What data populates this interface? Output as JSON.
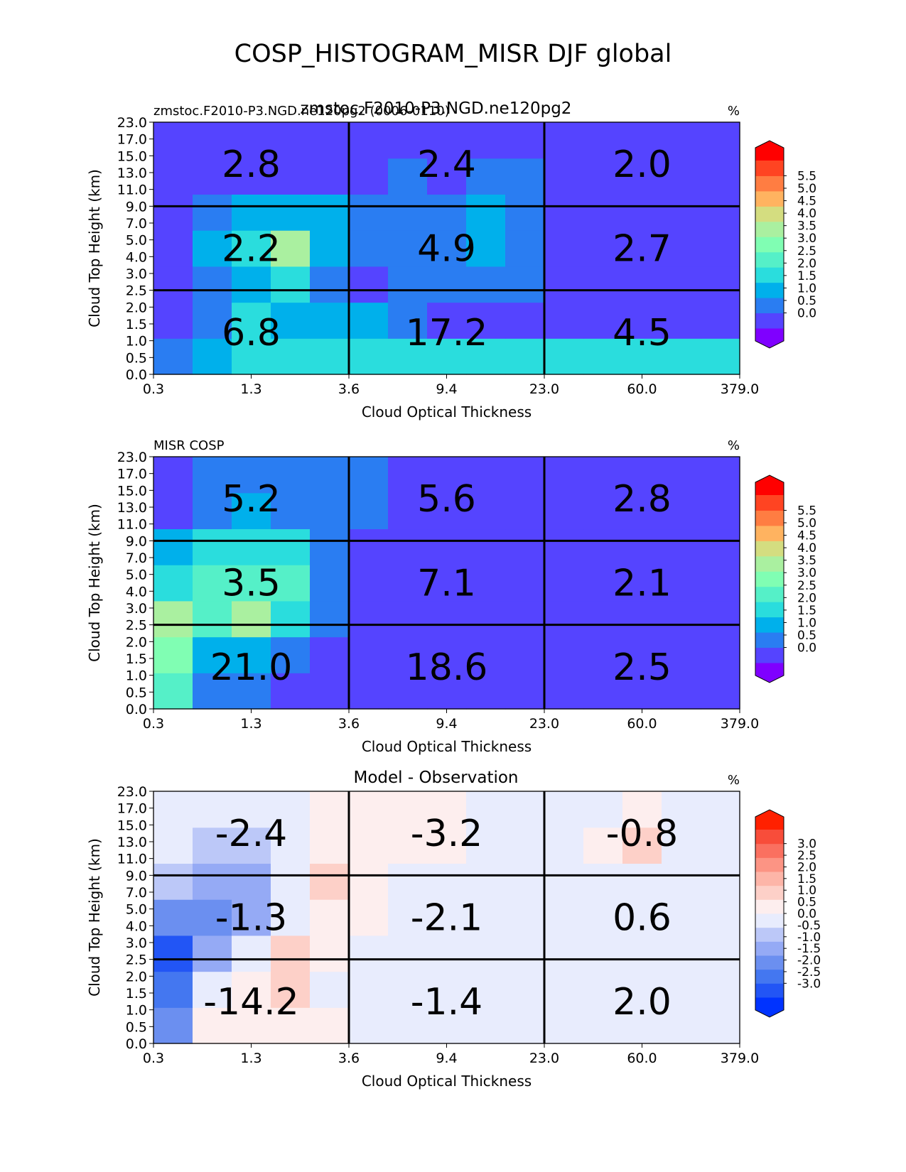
{
  "figure": {
    "title": "COSP_HISTOGRAM_MISR DJF global"
  },
  "axes_common": {
    "xlabel": "Cloud Optical Thickness",
    "ylabel": "Cloud Top Height (km)",
    "xticks": [
      "0.3",
      "1.3",
      "3.6",
      "9.4",
      "23.0",
      "60.0",
      "379.0"
    ],
    "yticks": [
      "0.0",
      "0.5",
      "1.0",
      "1.5",
      "2.0",
      "2.5",
      "3.0",
      "4.0",
      "5.0",
      "7.0",
      "9.0",
      "11.0",
      "13.0",
      "15.0",
      "17.0",
      "23.0"
    ],
    "units": "%"
  },
  "chart_data": [
    {
      "type": "heatmap",
      "panel_id": "model",
      "title_left": "zmstoc.F2010-P3.NGD.ne120pg2 (0006-0110)",
      "title_center": "zmstoc.F2010-P3.NGD.ne120pg2",
      "units": "%",
      "xlabel": "Cloud Optical Thickness",
      "ylabel": "Cloud Top Height (km)",
      "colorbar": {
        "ticks": [
          "5.5",
          "5.0",
          "4.5",
          "4.0",
          "3.5",
          "3.0",
          "2.5",
          "2.0",
          "1.5",
          "1.0",
          "0.5",
          "0.0"
        ],
        "colors": [
          "#7f00ff",
          "#5544ff",
          "#2a7df2",
          "#00b0eb",
          "#2adddd",
          "#55f0c8",
          "#80feb3",
          "#aaf0a0",
          "#d4dd80",
          "#ffb360",
          "#ff7d42",
          "#ff4422",
          "#ff0000"
        ],
        "extend": "both"
      },
      "cell_colors": [
        [
          "#2a7df2",
          "#00b0eb",
          "#2adddd",
          "#2adddd",
          "#2adddd",
          "#2adddd",
          "#2adddd",
          "#2adddd",
          "#2adddd",
          "#2adddd",
          "#2adddd",
          "#2adddd",
          "#2adddd",
          "#2adddd",
          "#2adddd"
        ],
        [
          "#5544ff",
          "#2a7df2",
          "#2adddd",
          "#00b0eb",
          "#00b0eb",
          "#00b0eb",
          "#2a7df2",
          "#5544ff",
          "#5544ff",
          "#5544ff",
          "#5544ff",
          "#5544ff",
          "#5544ff",
          "#5544ff",
          "#5544ff"
        ],
        [
          "#5544ff",
          "#2a7df2",
          "#00b0eb",
          "#2adddd",
          "#2a7df2",
          "#5544ff",
          "#2a7df2",
          "#2a7df2",
          "#2a7df2",
          "#2a7df2",
          "#5544ff",
          "#5544ff",
          "#5544ff",
          "#5544ff",
          "#5544ff"
        ],
        [
          "#5544ff",
          "#00b0eb",
          "#2adddd",
          "#aaf0a0",
          "#00b0eb",
          "#2a7df2",
          "#2a7df2",
          "#2a7df2",
          "#00b0eb",
          "#2a7df2",
          "#5544ff",
          "#5544ff",
          "#5544ff",
          "#5544ff",
          "#5544ff"
        ],
        [
          "#5544ff",
          "#2a7df2",
          "#00b0eb",
          "#00b0eb",
          "#00b0eb",
          "#2a7df2",
          "#2a7df2",
          "#2a7df2",
          "#00b0eb",
          "#2a7df2",
          "#5544ff",
          "#5544ff",
          "#5544ff",
          "#5544ff",
          "#5544ff"
        ],
        [
          "#5544ff",
          "#5544ff",
          "#5544ff",
          "#5544ff",
          "#5544ff",
          "#5544ff",
          "#2a7df2",
          "#5544ff",
          "#2a7df2",
          "#2a7df2",
          "#5544ff",
          "#5544ff",
          "#5544ff",
          "#5544ff",
          "#5544ff"
        ],
        [
          "#5544ff",
          "#5544ff",
          "#5544ff",
          "#5544ff",
          "#5544ff",
          "#5544ff",
          "#5544ff",
          "#5544ff",
          "#5544ff",
          "#5544ff",
          "#5544ff",
          "#5544ff",
          "#5544ff",
          "#5544ff",
          "#5544ff"
        ]
      ],
      "box_values": [
        [
          "6.8",
          "17.2",
          "4.5"
        ],
        [
          "2.2",
          "4.9",
          "2.7"
        ],
        [
          "2.8",
          "2.4",
          "2.0"
        ]
      ]
    },
    {
      "type": "heatmap",
      "panel_id": "obs",
      "title_left": "MISR COSP",
      "title_center": "",
      "units": "%",
      "xlabel": "Cloud Optical Thickness",
      "ylabel": "Cloud Top Height (km)",
      "colorbar": {
        "ticks": [
          "5.5",
          "5.0",
          "4.5",
          "4.0",
          "3.5",
          "3.0",
          "2.5",
          "2.0",
          "1.5",
          "1.0",
          "0.5",
          "0.0"
        ],
        "colors": [
          "#7f00ff",
          "#5544ff",
          "#2a7df2",
          "#00b0eb",
          "#2adddd",
          "#55f0c8",
          "#80feb3",
          "#aaf0a0",
          "#d4dd80",
          "#ffb360",
          "#ff7d42",
          "#ff4422",
          "#ff0000"
        ],
        "extend": "both"
      },
      "cell_colors": [
        [
          "#55f0c8",
          "#2a7df2",
          "#2a7df2",
          "#5544ff",
          "#5544ff",
          "#5544ff",
          "#5544ff",
          "#5544ff",
          "#5544ff",
          "#5544ff",
          "#5544ff",
          "#5544ff",
          "#5544ff",
          "#5544ff",
          "#5544ff"
        ],
        [
          "#80feb3",
          "#00b0eb",
          "#00b0eb",
          "#2a7df2",
          "#5544ff",
          "#5544ff",
          "#5544ff",
          "#5544ff",
          "#5544ff",
          "#5544ff",
          "#5544ff",
          "#5544ff",
          "#5544ff",
          "#5544ff",
          "#5544ff"
        ],
        [
          "#aaf0a0",
          "#55f0c8",
          "#aaf0a0",
          "#2adddd",
          "#2a7df2",
          "#5544ff",
          "#5544ff",
          "#5544ff",
          "#5544ff",
          "#5544ff",
          "#5544ff",
          "#5544ff",
          "#5544ff",
          "#5544ff",
          "#5544ff"
        ],
        [
          "#2adddd",
          "#55f0c8",
          "#55f0c8",
          "#55f0c8",
          "#2a7df2",
          "#5544ff",
          "#5544ff",
          "#5544ff",
          "#5544ff",
          "#5544ff",
          "#5544ff",
          "#5544ff",
          "#5544ff",
          "#5544ff",
          "#5544ff"
        ],
        [
          "#00b0eb",
          "#2adddd",
          "#2adddd",
          "#2adddd",
          "#2a7df2",
          "#5544ff",
          "#5544ff",
          "#5544ff",
          "#5544ff",
          "#5544ff",
          "#5544ff",
          "#5544ff",
          "#5544ff",
          "#5544ff",
          "#5544ff"
        ],
        [
          "#5544ff",
          "#2a7df2",
          "#00b0eb",
          "#2a7df2",
          "#2a7df2",
          "#2a7df2",
          "#5544ff",
          "#5544ff",
          "#5544ff",
          "#5544ff",
          "#5544ff",
          "#5544ff",
          "#5544ff",
          "#5544ff",
          "#5544ff"
        ],
        [
          "#5544ff",
          "#2a7df2",
          "#2a7df2",
          "#2a7df2",
          "#2a7df2",
          "#2a7df2",
          "#5544ff",
          "#5544ff",
          "#5544ff",
          "#5544ff",
          "#5544ff",
          "#5544ff",
          "#5544ff",
          "#5544ff",
          "#5544ff"
        ]
      ],
      "box_values": [
        [
          "21.0",
          "18.6",
          "2.5"
        ],
        [
          "3.5",
          "7.1",
          "2.1"
        ],
        [
          "5.2",
          "5.6",
          "2.8"
        ]
      ]
    },
    {
      "type": "heatmap",
      "panel_id": "diff",
      "title_left": "",
      "title_center": "Model - Observation",
      "units": "%",
      "xlabel": "Cloud Optical Thickness",
      "ylabel": "Cloud Top Height (km)",
      "colorbar": {
        "ticks": [
          "3.0",
          "2.5",
          "2.0",
          "1.5",
          "1.0",
          "0.5",
          "0.0",
          "-0.5",
          "-1.0",
          "-1.5",
          "-2.0",
          "-2.5",
          "-3.0"
        ],
        "colors": [
          "#0033ff",
          "#2255f5",
          "#4477f0",
          "#6b8ff0",
          "#95aaf5",
          "#bcc8f8",
          "#e8ecfd",
          "#fdeeee",
          "#fdd0c8",
          "#fdb5a8",
          "#fc9484",
          "#fa7060",
          "#f84d3a",
          "#ff2000"
        ],
        "extend": "both"
      },
      "cell_colors": [
        [
          "#6b8ff0",
          "#fdeeee",
          "#fdeeee",
          "#fdeeee",
          "#fdeeee",
          "#e8ecfd",
          "#e8ecfd",
          "#e8ecfd",
          "#e8ecfd",
          "#e8ecfd",
          "#e8ecfd",
          "#e8ecfd",
          "#e8ecfd",
          "#e8ecfd",
          "#e8ecfd"
        ],
        [
          "#4477f0",
          "#e8ecfd",
          "#fdeeee",
          "#fdd0c8",
          "#e8ecfd",
          "#e8ecfd",
          "#e8ecfd",
          "#e8ecfd",
          "#e8ecfd",
          "#e8ecfd",
          "#e8ecfd",
          "#e8ecfd",
          "#e8ecfd",
          "#e8ecfd",
          "#e8ecfd"
        ],
        [
          "#2255f5",
          "#95aaf5",
          "#e8ecfd",
          "#fdd0c8",
          "#fdeeee",
          "#e8ecfd",
          "#e8ecfd",
          "#e8ecfd",
          "#e8ecfd",
          "#e8ecfd",
          "#e8ecfd",
          "#e8ecfd",
          "#e8ecfd",
          "#e8ecfd",
          "#e8ecfd"
        ],
        [
          "#6b8ff0",
          "#6b8ff0",
          "#95aaf5",
          "#e8ecfd",
          "#fdeeee",
          "#fdeeee",
          "#e8ecfd",
          "#e8ecfd",
          "#e8ecfd",
          "#e8ecfd",
          "#e8ecfd",
          "#e8ecfd",
          "#e8ecfd",
          "#e8ecfd",
          "#e8ecfd"
        ],
        [
          "#bcc8f8",
          "#95aaf5",
          "#95aaf5",
          "#e8ecfd",
          "#fdd0c8",
          "#fdeeee",
          "#e8ecfd",
          "#e8ecfd",
          "#e8ecfd",
          "#e8ecfd",
          "#e8ecfd",
          "#e8ecfd",
          "#e8ecfd",
          "#e8ecfd",
          "#e8ecfd"
        ],
        [
          "#e8ecfd",
          "#bcc8f8",
          "#bcc8f8",
          "#e8ecfd",
          "#fdeeee",
          "#fdeeee",
          "#fdeeee",
          "#fdeeee",
          "#e8ecfd",
          "#e8ecfd",
          "#e8ecfd",
          "#fdeeee",
          "#fdd0c8",
          "#e8ecfd",
          "#e8ecfd"
        ],
        [
          "#e8ecfd",
          "#e8ecfd",
          "#e8ecfd",
          "#e8ecfd",
          "#fdeeee",
          "#fdeeee",
          "#fdeeee",
          "#fdeeee",
          "#e8ecfd",
          "#e8ecfd",
          "#e8ecfd",
          "#e8ecfd",
          "#fdeeee",
          "#e8ecfd",
          "#e8ecfd"
        ]
      ],
      "box_values": [
        [
          "-14.2",
          "-1.4",
          "2.0"
        ],
        [
          "-1.3",
          "-2.1",
          "0.6"
        ],
        [
          "-2.4",
          "-3.2",
          "-0.8"
        ]
      ]
    }
  ]
}
